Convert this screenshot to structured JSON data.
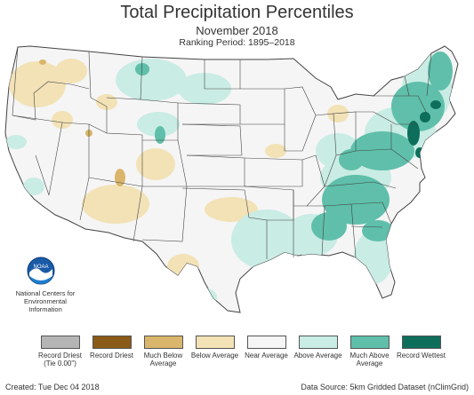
{
  "header": {
    "title": "Total Precipitation Percentiles",
    "subtitle": "November 2018",
    "ranking_period": "Ranking Period: 1895–2018"
  },
  "logo": {
    "icon": "noaa-logo",
    "text": "NOAA",
    "institution": "National Centers for Environmental Information"
  },
  "legend": [
    {
      "key": "record-driest-tie",
      "label": "Record Driest (Tie 0.00\")",
      "color": "#b5b5b5"
    },
    {
      "key": "record-driest",
      "label": "Record Driest",
      "color": "#8a5a18"
    },
    {
      "key": "much-below-average",
      "label": "Much Below Average",
      "color": "#d9b66b"
    },
    {
      "key": "below-average",
      "label": "Below Average",
      "color": "#f2e2b6"
    },
    {
      "key": "near-average",
      "label": "Near Average",
      "color": "#f5f5f5"
    },
    {
      "key": "above-average",
      "label": "Above Average",
      "color": "#c9ece4"
    },
    {
      "key": "much-above-average",
      "label": "Much Above Average",
      "color": "#5fbfaa"
    },
    {
      "key": "record-wettest",
      "label": "Record Wettest",
      "color": "#0e6e5c"
    }
  ],
  "footer": {
    "created": "Created: Tue Dec 04 2018",
    "source": "Data Source: 5km Gridded Dataset (nClimGrid)"
  },
  "colors": {
    "state_border": "#444444",
    "map_background": "#f5f5f5"
  }
}
